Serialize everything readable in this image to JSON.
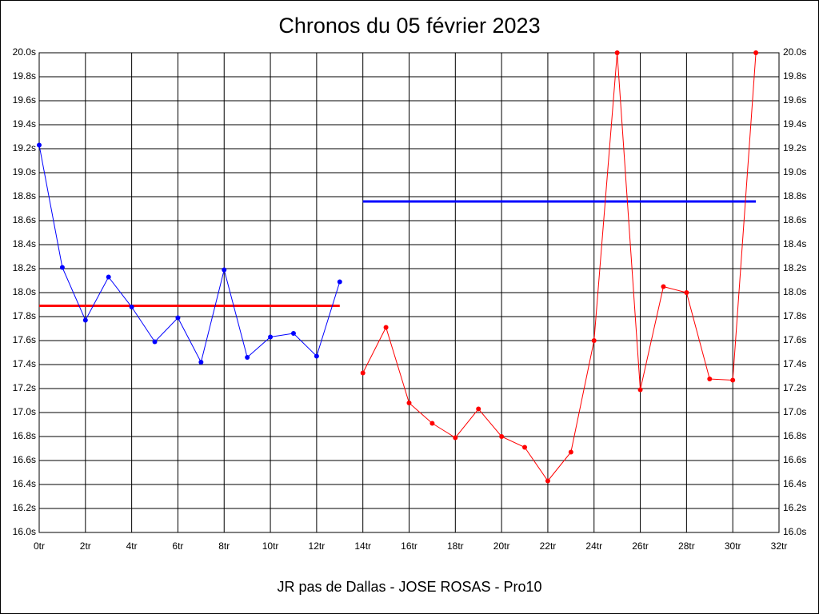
{
  "chart_data": {
    "type": "line",
    "title": "Chronos du 05 février 2023",
    "footer": "JR pas de Dallas - JOSE ROSAS - Pro10",
    "xlim": [
      0,
      32
    ],
    "xticks": [
      {
        "value": 0,
        "label": "0tr"
      },
      {
        "value": 2,
        "label": "2tr"
      },
      {
        "value": 4,
        "label": "4tr"
      },
      {
        "value": 6,
        "label": "6tr"
      },
      {
        "value": 8,
        "label": "8tr"
      },
      {
        "value": 10,
        "label": "10tr"
      },
      {
        "value": 12,
        "label": "12tr"
      },
      {
        "value": 14,
        "label": "14tr"
      },
      {
        "value": 16,
        "label": "16tr"
      },
      {
        "value": 18,
        "label": "18tr"
      },
      {
        "value": 20,
        "label": "20tr"
      },
      {
        "value": 22,
        "label": "22tr"
      },
      {
        "value": 24,
        "label": "24tr"
      },
      {
        "value": 26,
        "label": "26tr"
      },
      {
        "value": 28,
        "label": "28tr"
      },
      {
        "value": 30,
        "label": "30tr"
      },
      {
        "value": 32,
        "label": "32tr"
      }
    ],
    "ylim": [
      16.0,
      20.0
    ],
    "yticks": [
      {
        "value": 16.0,
        "label": "16.0s"
      },
      {
        "value": 16.2,
        "label": "16.2s"
      },
      {
        "value": 16.4,
        "label": "16.4s"
      },
      {
        "value": 16.6,
        "label": "16.6s"
      },
      {
        "value": 16.8,
        "label": "16.8s"
      },
      {
        "value": 17.0,
        "label": "17.0s"
      },
      {
        "value": 17.2,
        "label": "17.2s"
      },
      {
        "value": 17.4,
        "label": "17.4s"
      },
      {
        "value": 17.6,
        "label": "17.6s"
      },
      {
        "value": 17.8,
        "label": "17.8s"
      },
      {
        "value": 18.0,
        "label": "18.0s"
      },
      {
        "value": 18.2,
        "label": "18.2s"
      },
      {
        "value": 18.4,
        "label": "18.4s"
      },
      {
        "value": 18.6,
        "label": "18.6s"
      },
      {
        "value": 18.8,
        "label": "18.8s"
      },
      {
        "value": 19.0,
        "label": "19.0s"
      },
      {
        "value": 19.2,
        "label": "19.2s"
      },
      {
        "value": 19.4,
        "label": "19.4s"
      },
      {
        "value": 19.6,
        "label": "19.6s"
      },
      {
        "value": 19.8,
        "label": "19.8s"
      },
      {
        "value": 20.0,
        "label": "20.0s"
      }
    ],
    "grid": true,
    "series": [
      {
        "color": "#0000ff",
        "x": [
          0,
          1,
          2,
          3,
          4,
          5,
          6,
          7,
          8,
          9,
          10,
          11,
          12,
          13
        ],
        "values": [
          19.23,
          18.21,
          17.77,
          18.13,
          17.88,
          17.59,
          17.79,
          17.42,
          18.19,
          17.46,
          17.63,
          17.66,
          17.47,
          18.09
        ]
      },
      {
        "color": "#ff0000",
        "x": [
          14,
          15,
          16,
          17,
          18,
          19,
          20,
          21,
          22,
          23,
          24,
          25,
          26,
          27,
          28,
          29,
          30,
          31
        ],
        "values": [
          17.33,
          17.71,
          17.08,
          16.91,
          16.79,
          17.03,
          16.8,
          16.71,
          16.43,
          16.67,
          17.6,
          20.0,
          17.19,
          18.05,
          18.0,
          17.28,
          17.27,
          20.0
        ]
      }
    ],
    "reference_lines": [
      {
        "color": "#ff0000",
        "x": [
          0,
          13
        ],
        "value": 17.89
      },
      {
        "color": "#0000ff",
        "x": [
          14,
          31
        ],
        "value": 18.76
      }
    ]
  }
}
